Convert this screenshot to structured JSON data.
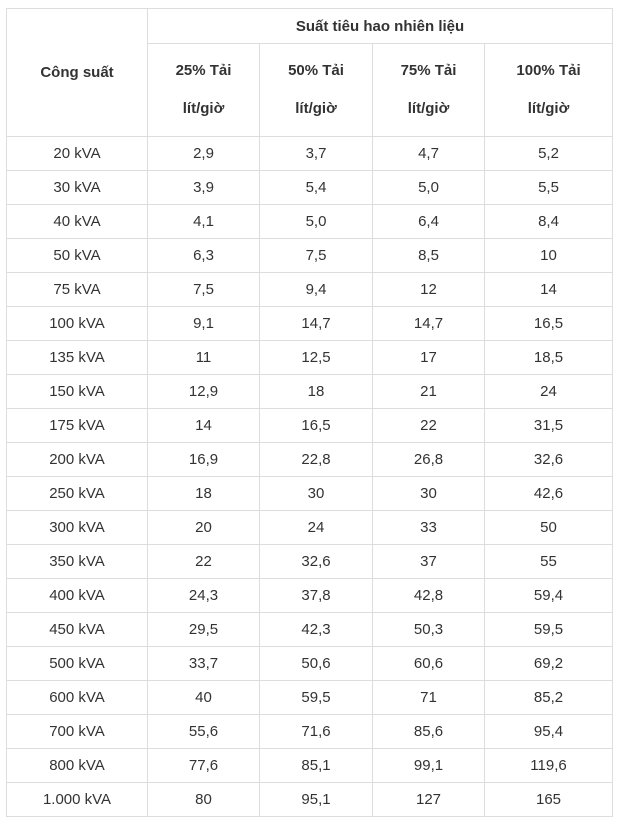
{
  "table": {
    "header": {
      "capacity_label": "Công suất",
      "group_label": "Suất tiêu hao nhiên liệu",
      "load_columns": [
        {
          "label": "25% Tải",
          "unit": "lít/giờ"
        },
        {
          "label": "50% Tải",
          "unit": "lít/giờ"
        },
        {
          "label": "75% Tải",
          "unit": "lít/giờ"
        },
        {
          "label": "100% Tải",
          "unit": "lít/giờ"
        }
      ]
    },
    "rows": [
      [
        "20 kVA",
        "2,9",
        "3,7",
        "4,7",
        "5,2"
      ],
      [
        "30 kVA",
        "3,9",
        "5,4",
        "5,0",
        "5,5"
      ],
      [
        "40 kVA",
        "4,1",
        "5,0",
        "6,4",
        "8,4"
      ],
      [
        "50 kVA",
        "6,3",
        "7,5",
        "8,5",
        "10"
      ],
      [
        "75 kVA",
        "7,5",
        "9,4",
        "12",
        "14"
      ],
      [
        "100 kVA",
        "9,1",
        "14,7",
        "14,7",
        "16,5"
      ],
      [
        "135 kVA",
        "11",
        "12,5",
        "17",
        "18,5"
      ],
      [
        "150 kVA",
        "12,9",
        "18",
        "21",
        "24"
      ],
      [
        "175 kVA",
        "14",
        "16,5",
        "22",
        "31,5"
      ],
      [
        "200 kVA",
        "16,9",
        "22,8",
        "26,8",
        "32,6"
      ],
      [
        "250 kVA",
        "18",
        "30",
        "30",
        "42,6"
      ],
      [
        "300 kVA",
        "20",
        "24",
        "33",
        "50"
      ],
      [
        "350 kVA",
        "22",
        "32,6",
        "37",
        "55"
      ],
      [
        "400 kVA",
        "24,3",
        "37,8",
        "42,8",
        "59,4"
      ],
      [
        "450 kVA",
        "29,5",
        "42,3",
        "50,3",
        "59,5"
      ],
      [
        "500 kVA",
        "33,7",
        "50,6",
        "60,6",
        "69,2"
      ],
      [
        "600 kVA",
        "40",
        "59,5",
        "71",
        "85,2"
      ],
      [
        "700 kVA",
        "55,6",
        "71,6",
        "85,6",
        "95,4"
      ],
      [
        "800 kVA",
        "77,6",
        "85,1",
        "99,1",
        "119,6"
      ],
      [
        "1.000 kVA",
        "80",
        "95,1",
        "127",
        "165"
      ]
    ]
  }
}
